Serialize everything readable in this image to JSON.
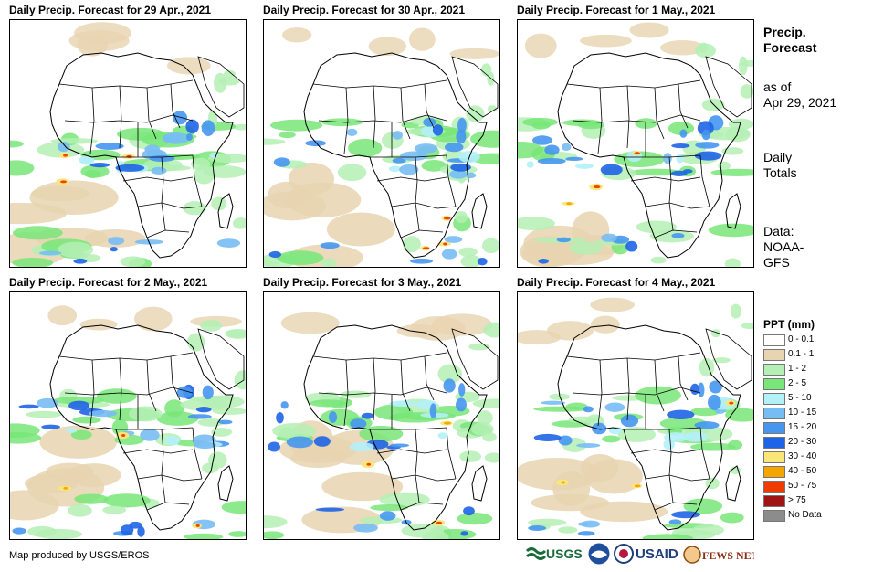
{
  "panels": [
    {
      "title": "Daily Precip. Forecast for 29 Apr., 2021",
      "seed": 1
    },
    {
      "title": "Daily Precip. Forecast for 30 Apr., 2021",
      "seed": 2
    },
    {
      "title": "Daily Precip. Forecast for 1 May., 2021",
      "seed": 3
    },
    {
      "title": "Daily Precip. Forecast for 2 May., 2021",
      "seed": 4
    },
    {
      "title": "Daily Precip. Forecast for 3 May., 2021",
      "seed": 5
    },
    {
      "title": "Daily Precip. Forecast for 4 May., 2021",
      "seed": 6
    }
  ],
  "side": {
    "title_line1": "Precip.",
    "title_line2": "Forecast",
    "asof_line1": "as of",
    "asof_line2": "Apr 29, 2021",
    "totals_line1": "Daily",
    "totals_line2": "Totals",
    "data_line1": "Data:",
    "data_line2": "NOAA-",
    "data_line3": "GFS"
  },
  "legend": {
    "title": "PPT (mm)",
    "items": [
      {
        "label": "0 - 0.1",
        "color": "#ffffff"
      },
      {
        "label": "0.1 - 1",
        "color": "#e8d4b0"
      },
      {
        "label": "1 - 2",
        "color": "#b4f0b4"
      },
      {
        "label": "2 - 5",
        "color": "#78e678"
      },
      {
        "label": "5 - 10",
        "color": "#b4f0f8"
      },
      {
        "label": "10 - 15",
        "color": "#78bcf4"
      },
      {
        "label": "15 - 20",
        "color": "#4696f0"
      },
      {
        "label": "20 - 30",
        "color": "#1e64e6"
      },
      {
        "label": "30 - 40",
        "color": "#fae678"
      },
      {
        "label": "40 - 50",
        "color": "#f5a500"
      },
      {
        "label": "50 - 75",
        "color": "#f03c00"
      },
      {
        "label": "> 75",
        "color": "#a01414"
      },
      {
        "label": "No Data",
        "color": "#8c8c8c"
      }
    ]
  },
  "footer": {
    "credit": "Map produced by USGS/EROS",
    "logos": [
      "USGS",
      "NOAA",
      "USAID",
      "FEWS NET"
    ]
  }
}
